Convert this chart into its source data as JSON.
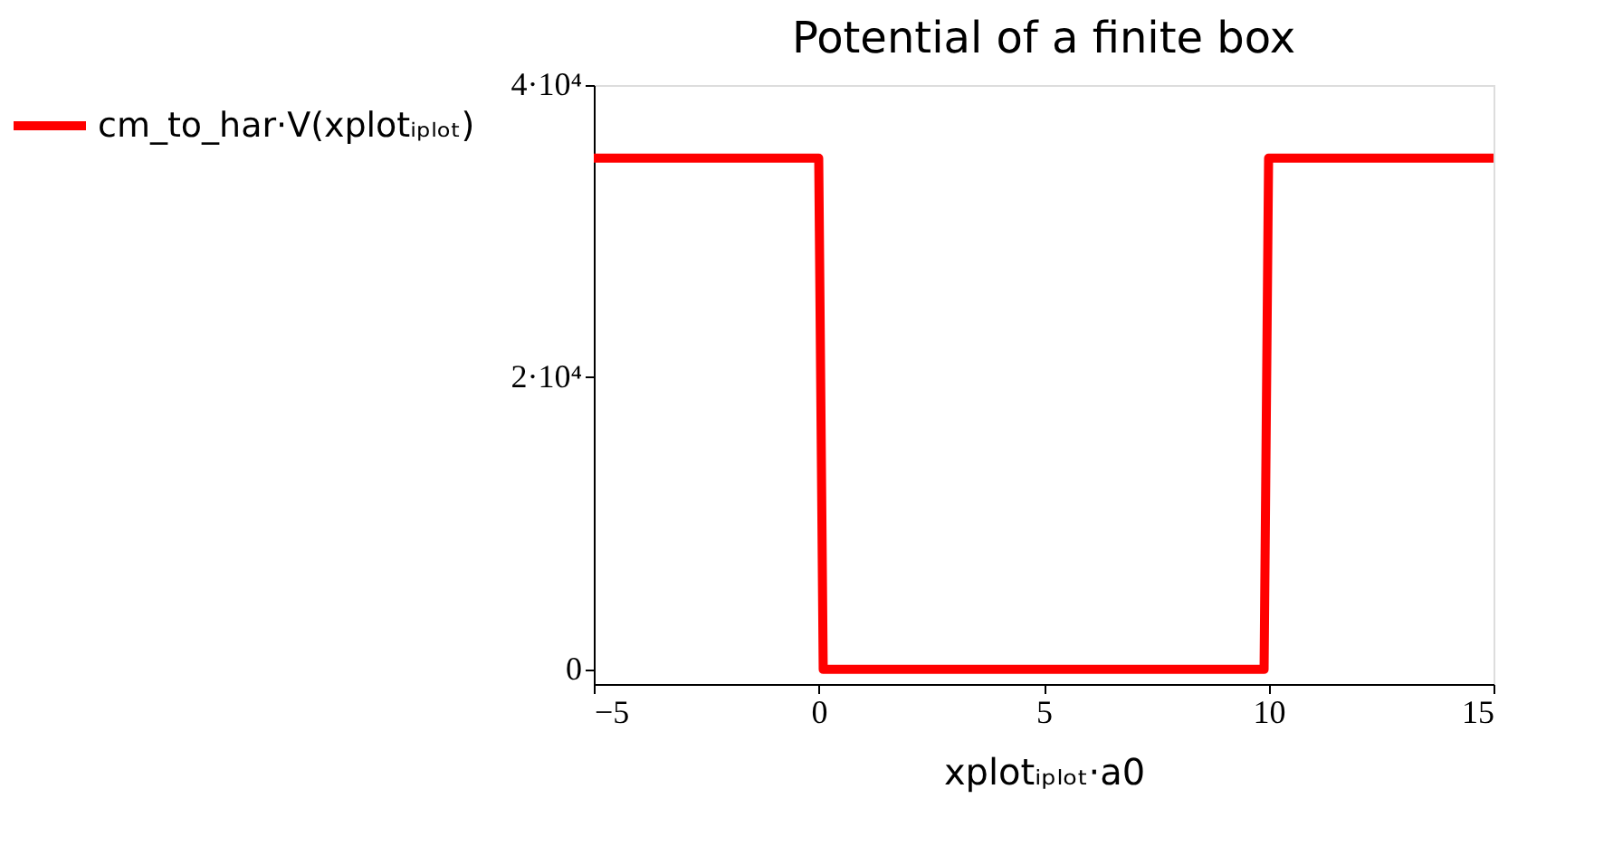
{
  "chart_data": {
    "type": "line",
    "title": "Potential of a finite box",
    "xlabel": "xplotᵢₚₗₒₜ·a0",
    "x": [
      -5,
      0,
      0.1,
      9.9,
      10,
      15
    ],
    "series": [
      {
        "name": "cm_to_har·V(xplotᵢₚₗₒₜ)",
        "color": "#ff0000",
        "values": [
          35000,
          35000,
          0,
          0,
          35000,
          35000
        ]
      }
    ],
    "xlim": [
      -5,
      15
    ],
    "xticks": [
      {
        "value": -5,
        "label": "−5"
      },
      0,
      5,
      10,
      15
    ],
    "ylim": [
      -1000,
      40000
    ],
    "yticks": [
      0,
      {
        "value": 20000,
        "label": "2·10⁴"
      },
      {
        "value": 40000,
        "label": "4·10⁴"
      }
    ],
    "grid": false,
    "legend": "left",
    "marker": "none",
    "line_style": "solid"
  }
}
